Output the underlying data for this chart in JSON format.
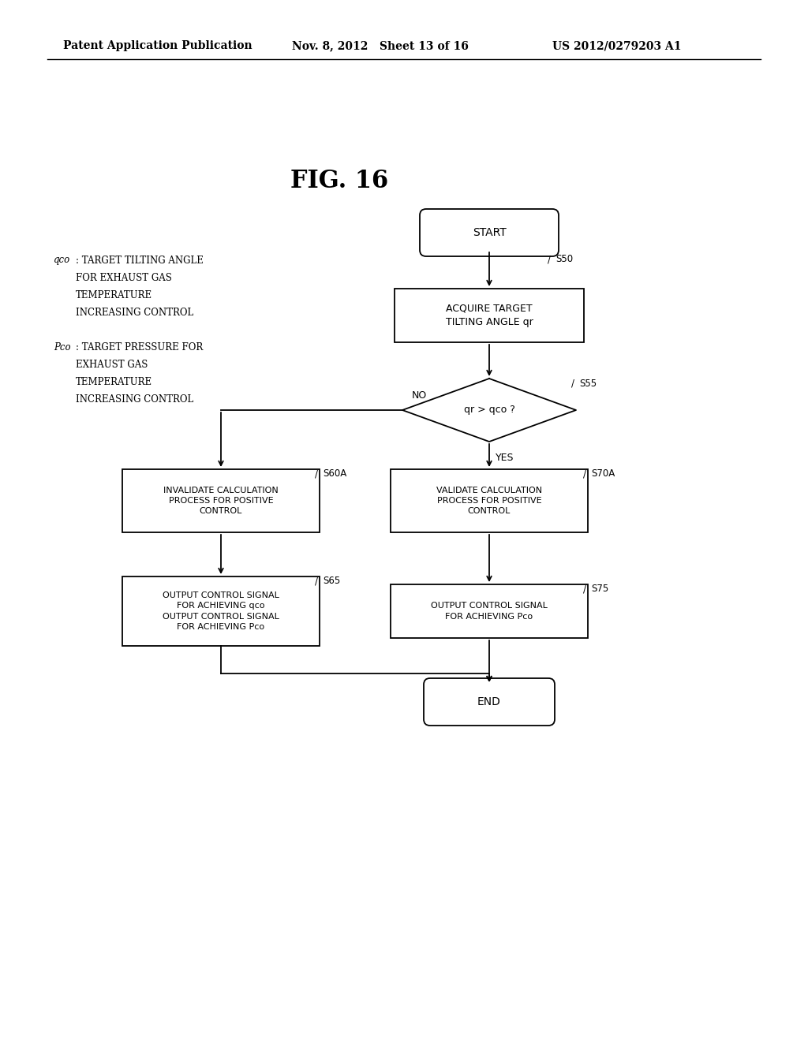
{
  "bg_color": "#ffffff",
  "header_left": "Patent Application Publication",
  "header_mid": "Nov. 8, 2012   Sheet 13 of 16",
  "header_right": "US 2012/0279203 A1",
  "fig_title": "FIG. 16",
  "font_size_header": 10,
  "font_size_fig": 22,
  "font_size_node": 8,
  "font_size_legend": 8.5,
  "font_size_step": 8.5
}
